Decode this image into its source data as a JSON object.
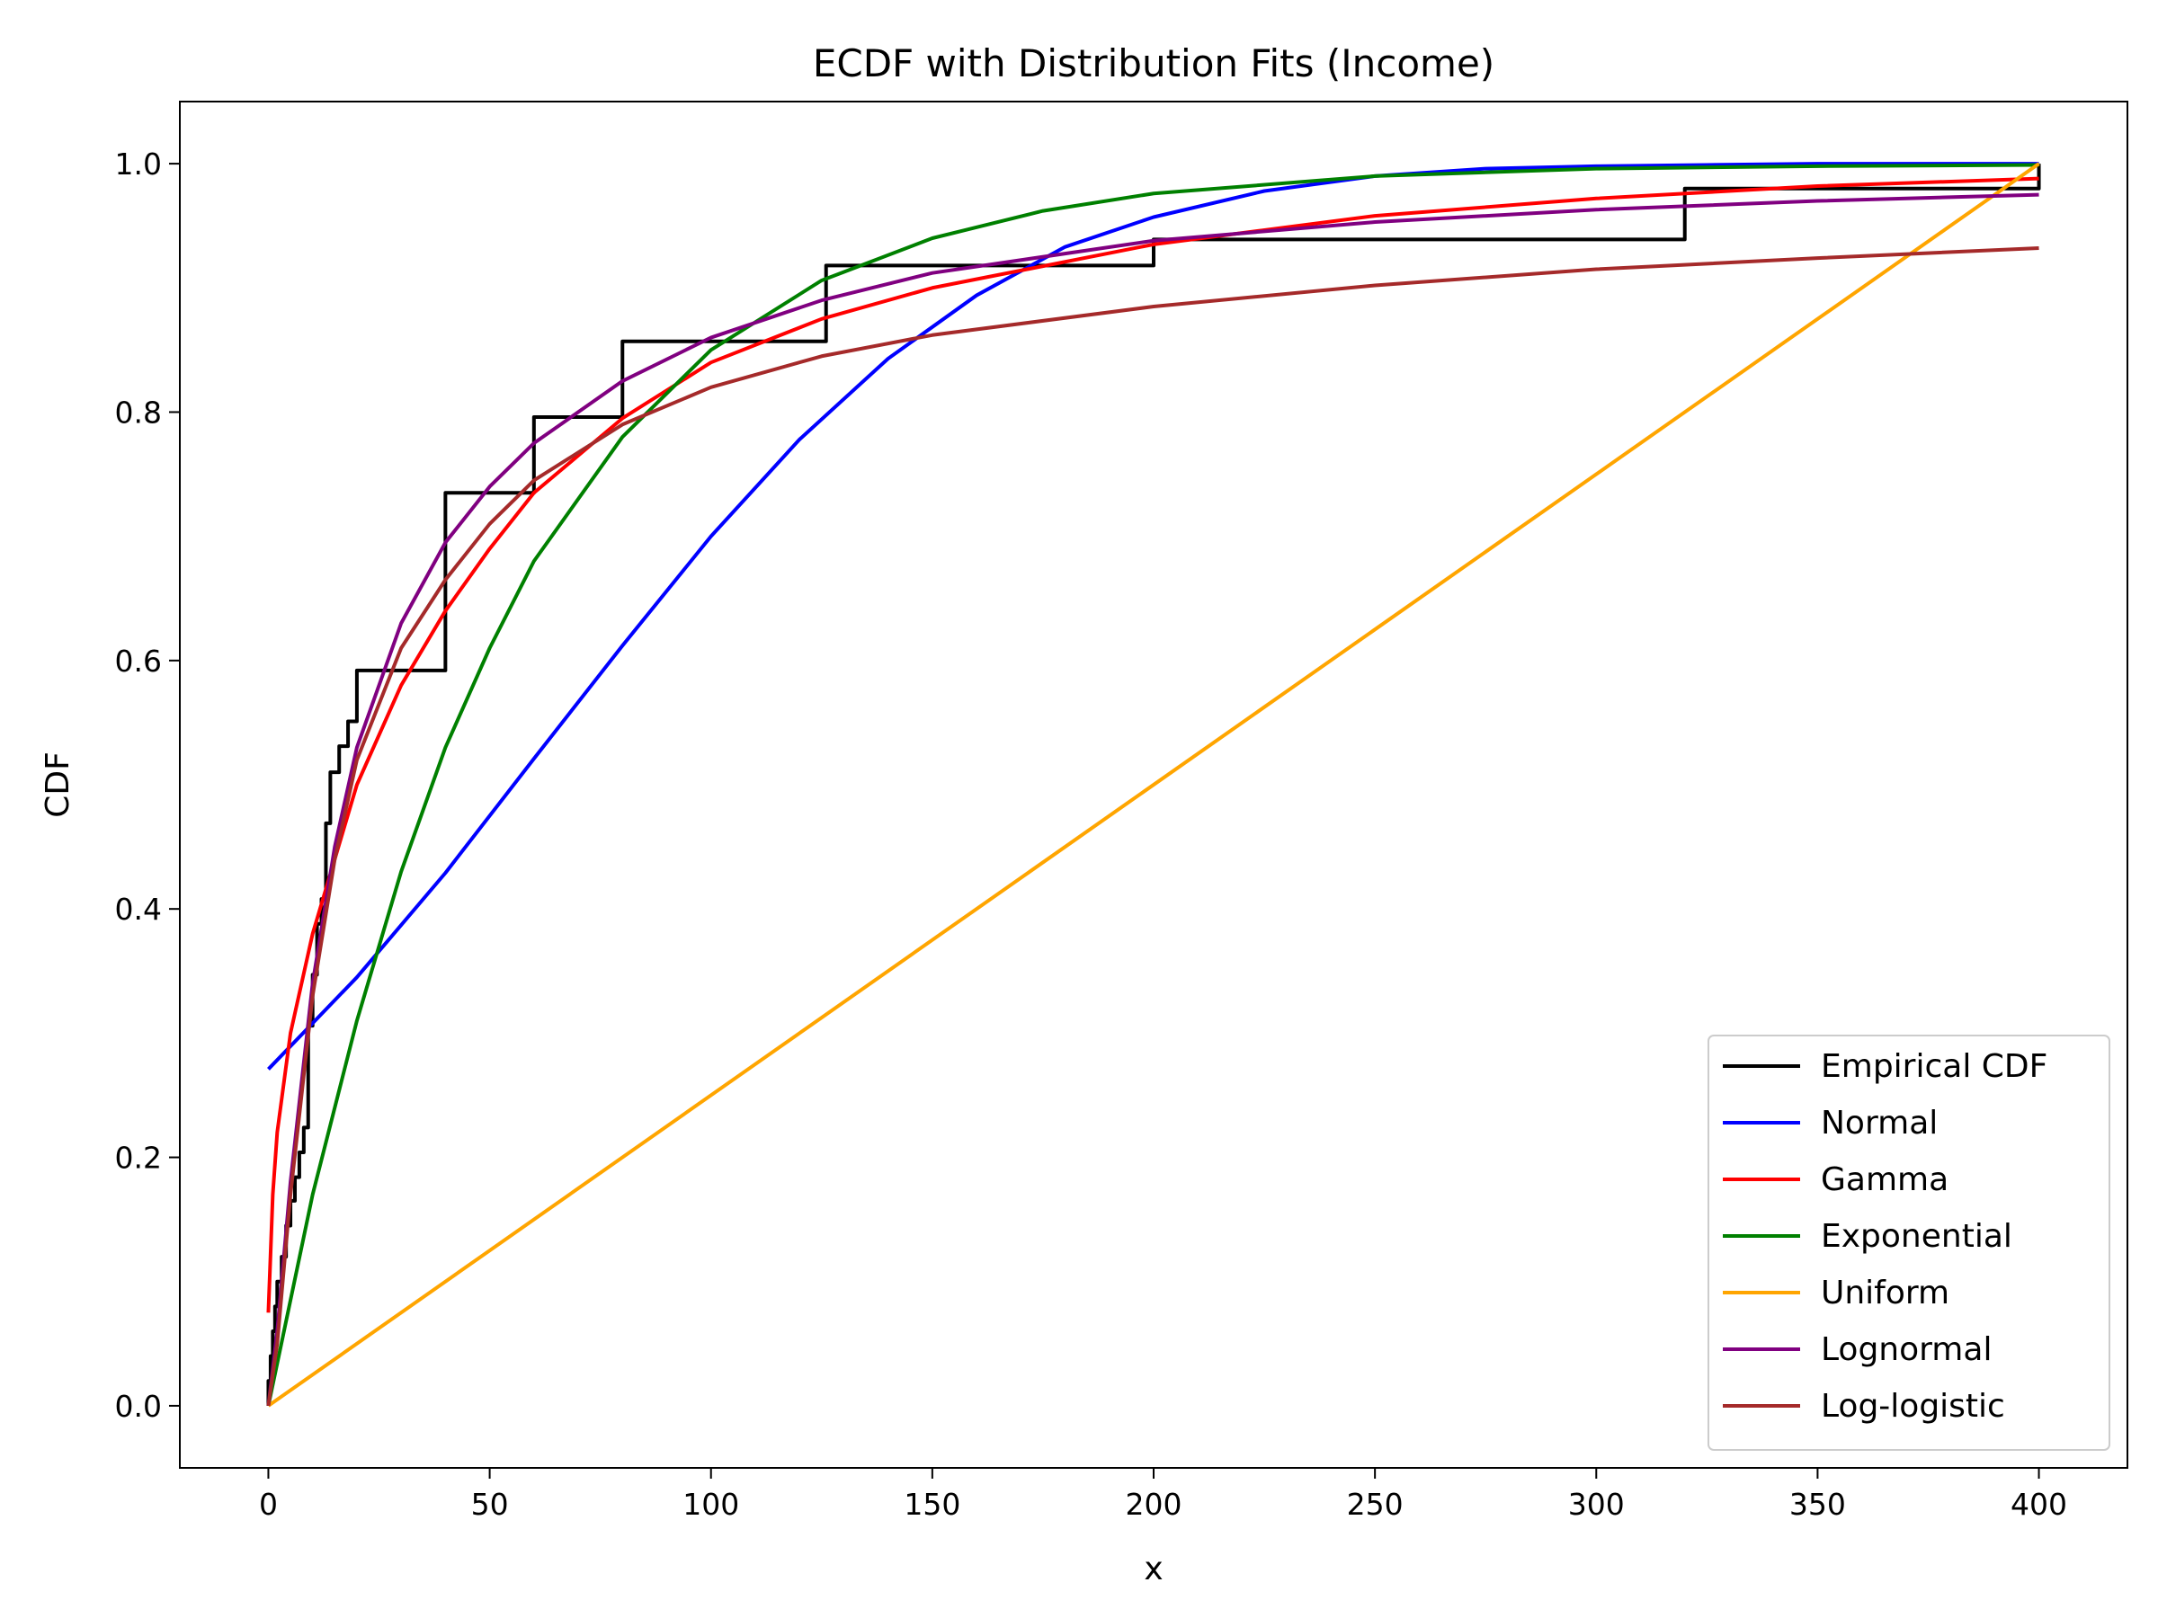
{
  "chart_data": {
    "type": "line",
    "title": "ECDF with Distribution Fits (Income)",
    "xlabel": "x",
    "ylabel": "CDF",
    "xlim": [
      -20,
      420
    ],
    "ylim": [
      -0.05,
      1.05
    ],
    "xticks": [
      0,
      50,
      100,
      150,
      200,
      250,
      300,
      350,
      400
    ],
    "yticks": [
      0.0,
      0.2,
      0.4,
      0.6,
      0.8,
      1.0
    ],
    "xtick_labels": [
      "0",
      "50",
      "100",
      "150",
      "200",
      "250",
      "300",
      "350",
      "400"
    ],
    "ytick_labels": [
      "0.0",
      "0.2",
      "0.4",
      "0.6",
      "0.8",
      "1.0"
    ],
    "grid": false,
    "legend_position": "lower-right",
    "series": [
      {
        "name": "Empirical CDF",
        "color": "#000000",
        "step": true,
        "x": [
          0,
          0.5,
          1,
          1.5,
          2,
          3,
          4,
          5,
          6,
          7,
          8,
          9,
          10,
          11,
          12,
          13,
          14,
          16,
          18,
          20,
          40,
          60,
          80,
          126,
          200,
          320,
          400
        ],
        "y": [
          0.02,
          0.04,
          0.06,
          0.08,
          0.1,
          0.12,
          0.145,
          0.165,
          0.184,
          0.204,
          0.224,
          0.306,
          0.347,
          0.388,
          0.408,
          0.469,
          0.51,
          0.531,
          0.551,
          0.592,
          0.735,
          0.796,
          0.857,
          0.918,
          0.939,
          0.98,
          1.0
        ]
      },
      {
        "name": "Normal",
        "color": "#0000ff",
        "x": [
          0,
          20,
          40,
          60,
          80,
          100,
          120,
          140,
          160,
          180,
          200,
          225,
          250,
          275,
          300,
          325,
          350,
          400
        ],
        "y": [
          0.271,
          0.345,
          0.429,
          0.521,
          0.612,
          0.7,
          0.778,
          0.843,
          0.894,
          0.933,
          0.957,
          0.978,
          0.99,
          0.996,
          0.998,
          0.999,
          1.0,
          1.0
        ]
      },
      {
        "name": "Gamma",
        "color": "#ff0000",
        "x": [
          0,
          1,
          2,
          5,
          10,
          15,
          20,
          30,
          40,
          50,
          60,
          80,
          100,
          125,
          150,
          200,
          250,
          300,
          350,
          400
        ],
        "y": [
          0.075,
          0.17,
          0.22,
          0.3,
          0.38,
          0.44,
          0.5,
          0.58,
          0.64,
          0.69,
          0.735,
          0.795,
          0.84,
          0.875,
          0.9,
          0.935,
          0.958,
          0.972,
          0.982,
          0.988
        ]
      },
      {
        "name": "Exponential",
        "color": "#008000",
        "x": [
          0,
          10,
          20,
          30,
          40,
          50,
          60,
          80,
          100,
          125,
          150,
          175,
          200,
          250,
          300,
          350,
          400
        ],
        "y": [
          0.0,
          0.17,
          0.31,
          0.43,
          0.53,
          0.61,
          0.68,
          0.78,
          0.85,
          0.906,
          0.94,
          0.962,
          0.976,
          0.99,
          0.996,
          0.998,
          0.999
        ]
      },
      {
        "name": "Uniform",
        "color": "#ffa500",
        "x": [
          0,
          400
        ],
        "y": [
          0.0,
          1.0
        ]
      },
      {
        "name": "Lognormal",
        "color": "#800080",
        "x": [
          0,
          2,
          5,
          10,
          15,
          20,
          30,
          40,
          50,
          60,
          80,
          100,
          125,
          150,
          200,
          250,
          300,
          350,
          400
        ],
        "y": [
          0.0,
          0.06,
          0.18,
          0.34,
          0.45,
          0.53,
          0.63,
          0.695,
          0.74,
          0.775,
          0.825,
          0.86,
          0.89,
          0.912,
          0.938,
          0.953,
          0.963,
          0.97,
          0.975
        ]
      },
      {
        "name": "Log-logistic",
        "color": "#a52a2a",
        "x": [
          0,
          2,
          5,
          10,
          15,
          20,
          30,
          40,
          50,
          60,
          80,
          100,
          125,
          150,
          200,
          250,
          300,
          350,
          400
        ],
        "y": [
          0.0,
          0.05,
          0.17,
          0.33,
          0.44,
          0.52,
          0.61,
          0.665,
          0.71,
          0.745,
          0.79,
          0.82,
          0.845,
          0.862,
          0.885,
          0.902,
          0.915,
          0.924,
          0.932
        ]
      }
    ]
  }
}
